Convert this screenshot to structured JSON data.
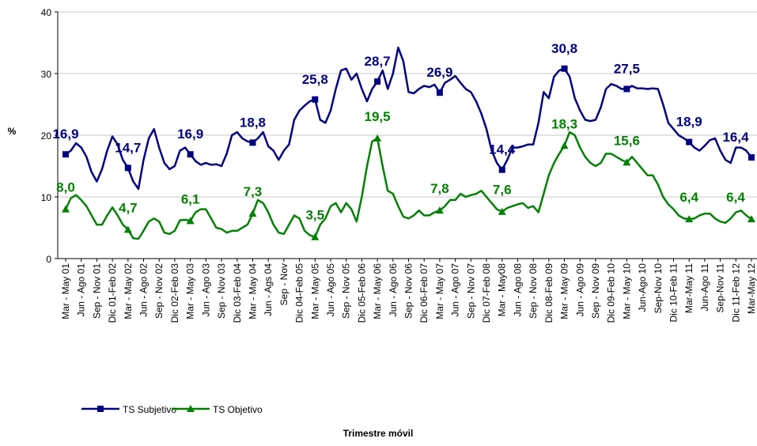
{
  "chart_data": {
    "type": "line",
    "y_label": "%",
    "x_label": "Trimestre móvil",
    "ylim": [
      0,
      40
    ],
    "yticks": [
      0,
      10,
      20,
      30,
      40
    ],
    "grid": true,
    "categories": [
      "Mar - May 01",
      null,
      null,
      "Jun - Ago 01",
      null,
      null,
      "Sep - Nov 01",
      null,
      null,
      "Dic 01-Feb 02",
      null,
      null,
      "Mar - May 02",
      null,
      null,
      "Jun - Ago 02",
      null,
      null,
      "Sep - Nov 02",
      null,
      null,
      "Dic 02-Feb 03",
      null,
      null,
      "Mar - May 03",
      null,
      null,
      "Jun - Ago 03",
      null,
      null,
      "Sep - Nov 03",
      null,
      null,
      "Dic 03-Feb 04",
      null,
      null,
      "Mar - May 04",
      null,
      null,
      "Jun - Ags 04",
      null,
      null,
      "Sep - Nov",
      null,
      null,
      "Dic 04-Feb 05",
      null,
      null,
      "Mar - May 05",
      null,
      null,
      "Jun - Ago 05",
      null,
      null,
      "Sep - Nov 05",
      null,
      null,
      "Dic 05-Feb 06",
      null,
      null,
      "Mar - May 06",
      null,
      null,
      "Jun - Ago 06",
      null,
      null,
      "Sep - Nov 06",
      null,
      null,
      "Dic 06-Feb 07",
      null,
      null,
      "Mar - May 07",
      null,
      null,
      "Jun - Ago 07",
      null,
      null,
      "Sep - Nov 07",
      null,
      null,
      "Dic 07-Feb 08",
      null,
      null,
      "Mar - May08",
      null,
      null,
      "Jun - Ago 08",
      null,
      null,
      "Sep - Nov 08",
      null,
      null,
      "Dic 08-Feb 09",
      null,
      null,
      "Mar - May 09",
      null,
      null,
      "Jun - Ago 09",
      null,
      null,
      "Sep - Nov 09",
      null,
      null,
      "Dic 09-Feb 10",
      null,
      null,
      "Mar - May 10",
      null,
      null,
      "Jun-Ago 10",
      null,
      null,
      "Sep-Nov 10",
      null,
      null,
      "Dic 10-Feb 11",
      null,
      null,
      "Mar-May 11",
      null,
      null,
      "Jun-Ago 11",
      null,
      null,
      "Sep-Nov 11",
      null,
      null,
      "Dic 11-Feb 12",
      null,
      null,
      "Mar-May 12"
    ],
    "series": [
      {
        "name": "TS Subjetivo",
        "color": "#000080",
        "marker": "square",
        "values": [
          16.9,
          17.5,
          18.7,
          18,
          16.5,
          14,
          12.5,
          14.5,
          17.5,
          19.8,
          18.5,
          16,
          14.7,
          12.5,
          11.3,
          16,
          19.5,
          21,
          18,
          15.5,
          14.5,
          15,
          17.5,
          18,
          16.9,
          15.8,
          15.2,
          15.5,
          15.2,
          15.3,
          15,
          17,
          20,
          20.5,
          19.5,
          19,
          18.8,
          19.5,
          20.5,
          18.2,
          17.5,
          16,
          17.5,
          18.5,
          22.5,
          24,
          24.8,
          25.5,
          25.8,
          22.5,
          22,
          24,
          27.5,
          30.5,
          30.8,
          29,
          30,
          27.5,
          25.5,
          27.5,
          28.7,
          30.5,
          27.5,
          30,
          34.2,
          32,
          27,
          26.8,
          27.5,
          28,
          27.8,
          28.2,
          26.9,
          28.5,
          29,
          29.6,
          28.5,
          27.5,
          27,
          25.5,
          23.5,
          21,
          17.5,
          15.5,
          14.4,
          16,
          18,
          18,
          18.2,
          18.5,
          18.5,
          22,
          27,
          26,
          29.5,
          30.5,
          30.8,
          29.5,
          26,
          24,
          22.5,
          22.3,
          22.5,
          24.5,
          27.5,
          28.3,
          28,
          27.5,
          27.5,
          28,
          27.6,
          27.6,
          27.5,
          27.6,
          27.5,
          25,
          22,
          21,
          20,
          19.5,
          18.9,
          18,
          17.5,
          18.3,
          19.2,
          19.5,
          17.5,
          16,
          15.5,
          18,
          18,
          17.5,
          16.4
        ],
        "value_labels": [
          "16,9",
          null,
          null,
          null,
          null,
          null,
          null,
          null,
          null,
          null,
          null,
          null,
          "14,7",
          null,
          null,
          null,
          null,
          null,
          null,
          null,
          null,
          null,
          null,
          null,
          "16,9",
          null,
          null,
          null,
          null,
          null,
          null,
          null,
          null,
          null,
          null,
          null,
          "18,8",
          null,
          null,
          null,
          null,
          null,
          null,
          null,
          null,
          null,
          null,
          null,
          "25,8",
          null,
          null,
          null,
          null,
          null,
          null,
          null,
          null,
          null,
          null,
          null,
          "28,7",
          null,
          null,
          null,
          null,
          null,
          null,
          null,
          null,
          null,
          null,
          null,
          "26,9",
          null,
          null,
          null,
          null,
          null,
          null,
          null,
          null,
          null,
          null,
          null,
          "14,4",
          null,
          null,
          null,
          null,
          null,
          null,
          null,
          null,
          null,
          null,
          null,
          "30,8",
          null,
          null,
          null,
          null,
          null,
          null,
          null,
          null,
          null,
          null,
          null,
          "27,5",
          null,
          null,
          null,
          null,
          null,
          null,
          null,
          null,
          null,
          null,
          null,
          "18,9",
          null,
          null,
          null,
          null,
          null,
          null,
          null,
          null,
          null,
          null,
          null,
          "16,4"
        ]
      },
      {
        "name": "TS Objetivo",
        "color": "#008000",
        "marker": "triangle",
        "values": [
          8,
          9.8,
          10.3,
          9.5,
          8.5,
          7,
          5.5,
          5.5,
          7,
          8.3,
          7,
          5.5,
          4.7,
          3.3,
          3.2,
          4.5,
          6,
          6.5,
          6,
          4.2,
          4,
          4.5,
          6.2,
          6.3,
          6.1,
          7.5,
          8,
          8,
          6.5,
          5,
          4.8,
          4.2,
          4.5,
          4.5,
          5,
          5.5,
          7.3,
          9.5,
          9,
          7.5,
          5.5,
          4.2,
          4,
          5.5,
          7,
          6.5,
          4.5,
          3.8,
          3.5,
          5.5,
          6.5,
          8.5,
          9,
          7.5,
          9,
          8,
          6,
          10,
          15,
          19,
          19.5,
          15,
          11,
          10.5,
          8.5,
          6.8,
          6.5,
          7,
          7.8,
          7,
          7,
          7.5,
          7.8,
          8.5,
          9.5,
          9.5,
          10.5,
          10,
          10.3,
          10.5,
          11,
          10,
          9,
          8,
          7.6,
          8.2,
          8.5,
          8.8,
          9,
          8.2,
          8.5,
          7.5,
          10.5,
          13.5,
          15.5,
          17,
          18.3,
          20.5,
          20,
          18,
          16.5,
          15.5,
          15,
          15.5,
          17,
          17,
          16.5,
          16,
          15.6,
          16.5,
          15.5,
          14.5,
          13.5,
          13.5,
          12,
          10,
          8.8,
          8,
          7,
          6.5,
          6.4,
          6.5,
          7,
          7.3,
          7.3,
          6.5,
          6,
          5.8,
          6.5,
          7.5,
          7.8,
          7,
          6.4
        ],
        "value_labels": [
          "8,0",
          null,
          null,
          null,
          null,
          null,
          null,
          null,
          null,
          null,
          null,
          null,
          "4,7",
          null,
          null,
          null,
          null,
          null,
          null,
          null,
          null,
          null,
          null,
          null,
          "6,1",
          null,
          null,
          null,
          null,
          null,
          null,
          null,
          null,
          null,
          null,
          null,
          "7,3",
          null,
          null,
          null,
          null,
          null,
          null,
          null,
          null,
          null,
          null,
          null,
          "3,5",
          null,
          null,
          null,
          null,
          null,
          null,
          null,
          null,
          null,
          null,
          null,
          "19,5",
          null,
          null,
          null,
          null,
          null,
          null,
          null,
          null,
          null,
          null,
          null,
          "7,8",
          null,
          null,
          null,
          null,
          null,
          null,
          null,
          null,
          null,
          null,
          null,
          "7,6",
          null,
          null,
          null,
          null,
          null,
          null,
          null,
          null,
          null,
          null,
          null,
          "18,3",
          null,
          null,
          null,
          null,
          null,
          null,
          null,
          null,
          null,
          null,
          null,
          "15,6",
          null,
          null,
          null,
          null,
          null,
          null,
          null,
          null,
          null,
          null,
          null,
          "6,4",
          null,
          null,
          null,
          null,
          null,
          null,
          null,
          null,
          null,
          null,
          null,
          "6,4"
        ]
      }
    ]
  }
}
